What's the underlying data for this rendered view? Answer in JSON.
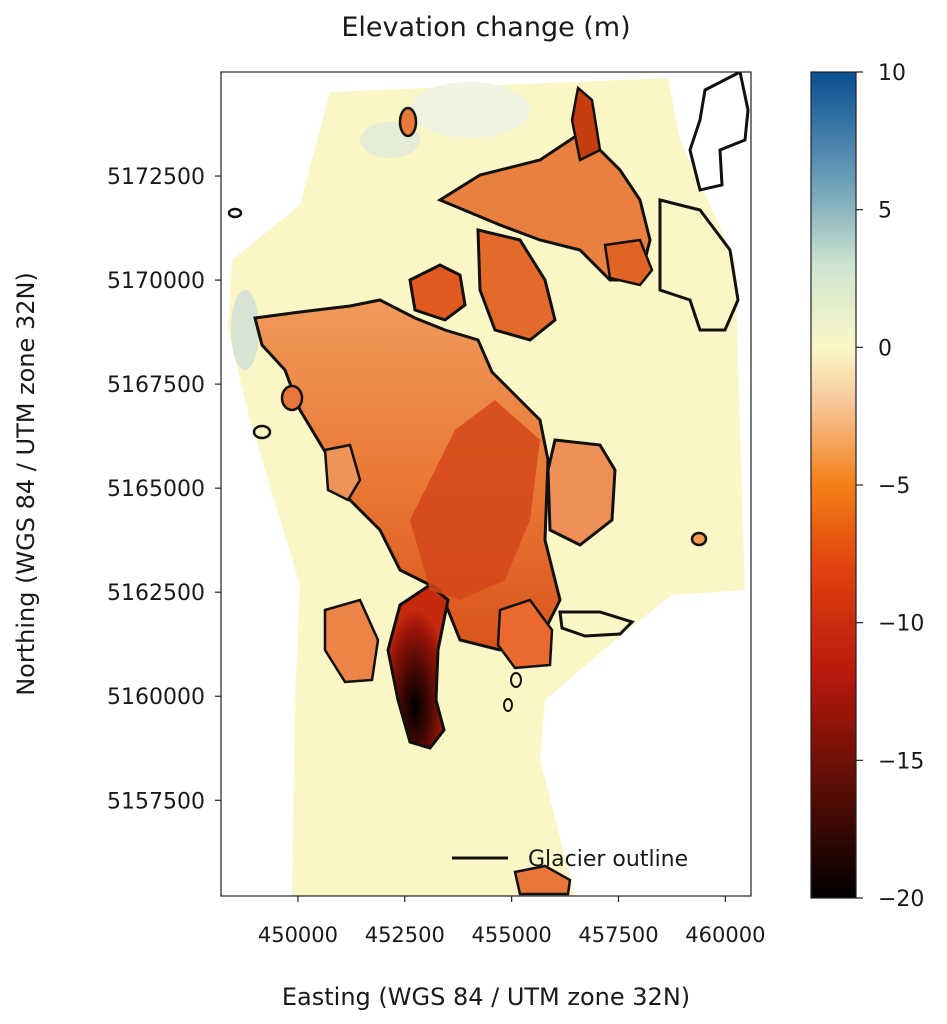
{
  "chart_data": {
    "type": "heatmap",
    "title": "Elevation change (m)",
    "xlabel": "Easting (WGS 84 / UTM zone 32N)",
    "ylabel": "Northing (WGS 84 / UTM zone 32N)",
    "xlim": [
      448200,
      460600
    ],
    "ylim": [
      5155200,
      5175000
    ],
    "x_ticks": [
      450000,
      452500,
      455000,
      457500,
      460000
    ],
    "x_tick_labels": [
      "450000",
      "452500",
      "455000",
      "457500",
      "460000"
    ],
    "y_ticks": [
      5157500,
      5160000,
      5162500,
      5165000,
      5167500,
      5170000,
      5172500
    ],
    "y_tick_labels": [
      "5157500",
      "5160000",
      "5162500",
      "5165000",
      "5167500",
      "5170000",
      "5172500"
    ],
    "colorbar": {
      "colormap": "RdYlBu (diverging)",
      "vmin": -20,
      "vmax": 10,
      "ticks": [
        10,
        5,
        0,
        -5,
        -10,
        -15,
        -20
      ],
      "tick_labels": [
        "10",
        "5",
        "0",
        "−5",
        "−10",
        "−15",
        "−20"
      ],
      "stops": [
        {
          "value": -20,
          "color": "#000000"
        },
        {
          "value": -16,
          "color": "#5a0d05"
        },
        {
          "value": -12,
          "color": "#b5180c"
        },
        {
          "value": -8,
          "color": "#e0420f"
        },
        {
          "value": -5,
          "color": "#f47f16"
        },
        {
          "value": -2,
          "color": "#f7c79a"
        },
        {
          "value": 0,
          "color": "#fbf7c8"
        },
        {
          "value": 3,
          "color": "#cde4d0"
        },
        {
          "value": 6,
          "color": "#6c9fb9"
        },
        {
          "value": 10,
          "color": "#094e93"
        }
      ]
    },
    "legend": {
      "placement": "lower-right",
      "entries": [
        {
          "label": "Glacier outline",
          "color": "#000000",
          "style": "line"
        }
      ]
    },
    "regions": {
      "surveyed_area_change_m": 0,
      "main_glacier_change_m": -5,
      "main_tongue_change_m": -15,
      "tongue_terminus_change_m": -20
    }
  }
}
